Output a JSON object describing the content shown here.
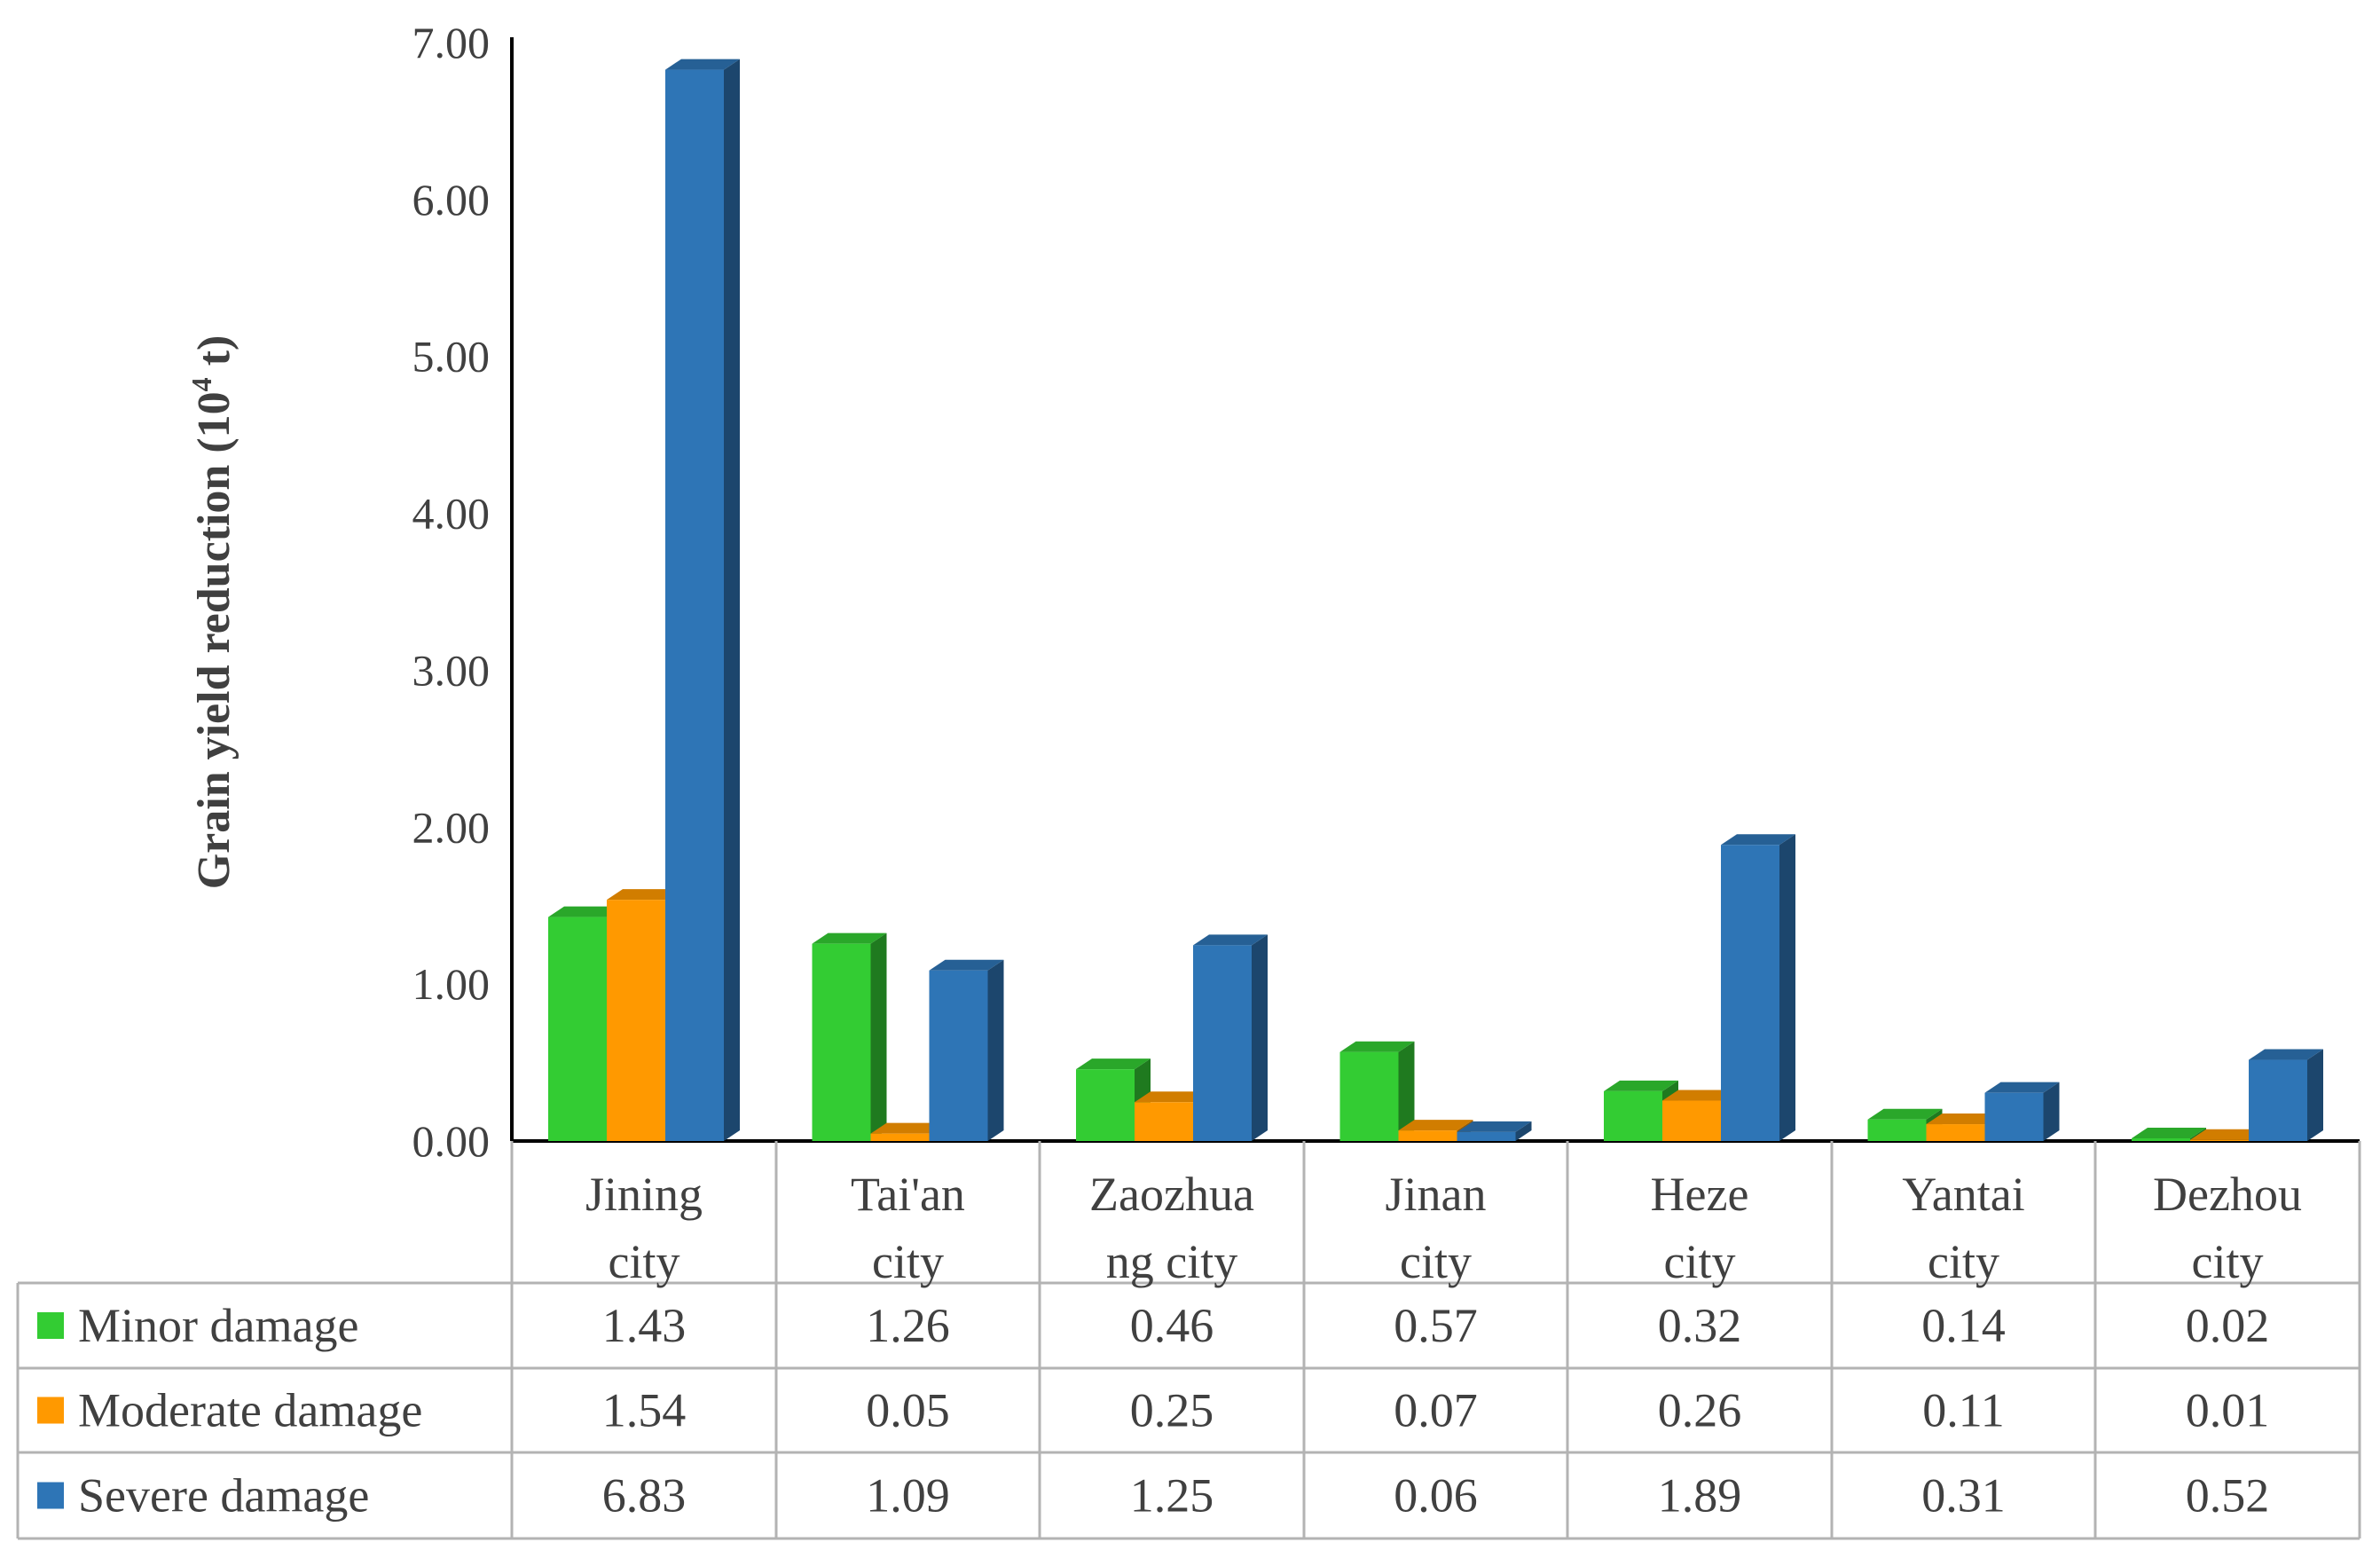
{
  "chart_data": {
    "type": "bar",
    "ylabel": "Grain yield reduction (10",
    "ylabel_sup": "4",
    "ylabel_suffix": " t)",
    "ylim": [
      0,
      7
    ],
    "yticks": [
      "0.00",
      "1.00",
      "2.00",
      "3.00",
      "4.00",
      "5.00",
      "6.00",
      "7.00"
    ],
    "grid": false,
    "legend": "data-table",
    "categories": [
      [
        "Jining",
        "city"
      ],
      [
        "Tai'an",
        "city"
      ],
      [
        "Zaozhua",
        "ng city"
      ],
      [
        "Jinan",
        "city"
      ],
      [
        "Heze",
        "city"
      ],
      [
        "Yantai",
        "city"
      ],
      [
        "Dezhou",
        "city"
      ]
    ],
    "series": [
      {
        "name": "Minor damage",
        "color": "#33cc33",
        "values": [
          1.43,
          1.26,
          0.46,
          0.57,
          0.32,
          0.14,
          0.02
        ],
        "labels": [
          "1.43",
          "1.26",
          "0.46",
          "0.57",
          "0.32",
          "0.14",
          "0.02"
        ]
      },
      {
        "name": "Moderate damage",
        "color": "#ff9900",
        "values": [
          1.54,
          0.05,
          0.25,
          0.07,
          0.26,
          0.11,
          0.01
        ],
        "labels": [
          "1.54",
          "0.05",
          "0.25",
          "0.07",
          "0.26",
          "0.11",
          "0.01"
        ]
      },
      {
        "name": "Severe damage",
        "color": "#2e75b6",
        "values": [
          6.83,
          1.09,
          1.25,
          0.06,
          1.89,
          0.31,
          0.52
        ],
        "labels": [
          "6.83",
          "1.09",
          "1.25",
          "0.06",
          "1.89",
          "0.31",
          "0.52"
        ]
      }
    ]
  }
}
